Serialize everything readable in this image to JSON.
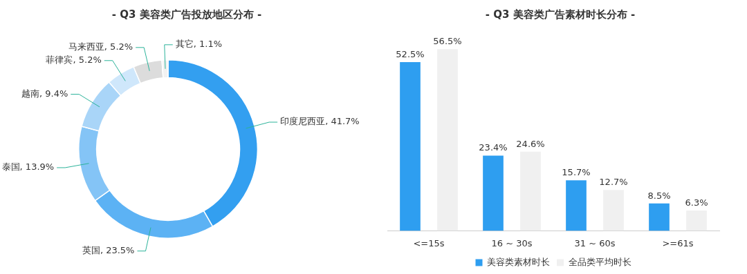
{
  "chart_data": [
    {
      "type": "donut",
      "title": "- Q3 美容类广告投放地区分布 -",
      "categories": [
        "印度尼西亚",
        "英国",
        "泰国",
        "越南",
        "菲律宾",
        "马来西亚",
        "其它"
      ],
      "values": [
        41.7,
        23.5,
        13.9,
        9.4,
        5.2,
        5.2,
        1.1
      ],
      "value_labels": [
        "41.7%",
        "23.5%",
        "13.9%",
        "9.4%",
        "5.2%",
        "5.2%",
        "1.1%"
      ],
      "colors": [
        "#339ff0",
        "#5cb2f4",
        "#84c4f6",
        "#a9d5f8",
        "#cfe7fb",
        "#dcdcdc",
        "#f2f2f2"
      ],
      "legend": false
    },
    {
      "type": "bar",
      "title": "- Q3 美容类广告素材时长分布 -",
      "categories": [
        "<=15s",
        "16 ~ 30s",
        "31 ~ 60s",
        ">=61s"
      ],
      "series": [
        {
          "name": "美容类素材时长",
          "color": "#2e9ef0",
          "values": [
            52.5,
            23.4,
            15.7,
            8.5
          ],
          "value_labels": [
            "52.5%",
            "23.4%",
            "15.7%",
            "8.5%"
          ]
        },
        {
          "name": "全品类平均时长",
          "color": "#f0f0f0",
          "values": [
            56.5,
            24.6,
            12.7,
            6.3
          ],
          "value_labels": [
            "56.5%",
            "24.6%",
            "12.7%",
            "6.3%"
          ]
        }
      ],
      "legend": "bottom",
      "grid": false,
      "tick_labels": "x"
    }
  ]
}
